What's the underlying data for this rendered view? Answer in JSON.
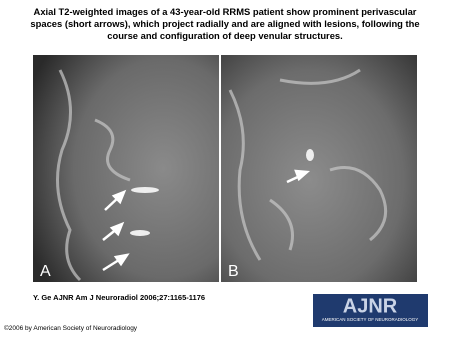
{
  "title": "Axial T2-weighted images of a 43-year-old RRMS patient show prominent perivascular spaces (short arrows), which project radially and are aligned with lesions, following the course and configuration of deep venular structures.",
  "panels": [
    {
      "label": "A"
    },
    {
      "label": "B"
    }
  ],
  "citation": "Y. Ge AJNR Am J Neuroradiol 2006;27:1165-1176",
  "logo": {
    "name": "AJNR",
    "subtitle": "AMERICAN SOCIETY OF NEURORADIOLOGY"
  },
  "copyright": "©2006 by American Society of Neuroradiology"
}
